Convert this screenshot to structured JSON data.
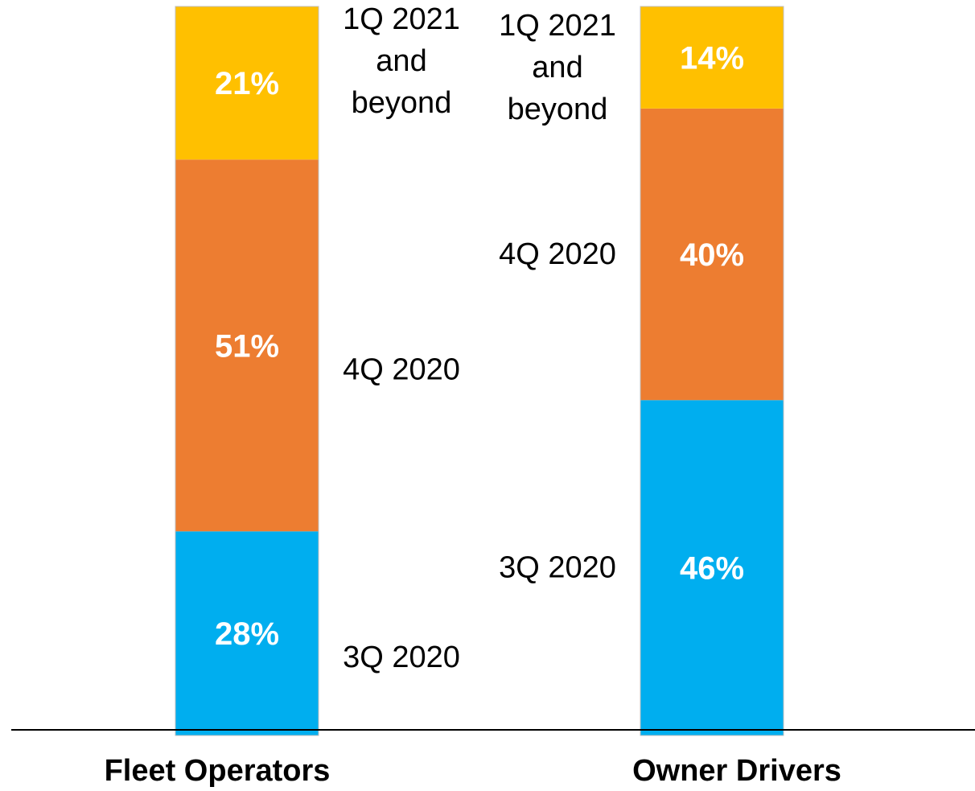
{
  "chart_data": {
    "type": "bar",
    "stacked": true,
    "percent_stacked": true,
    "categories": [
      "Fleet Operators",
      "Owner Drivers"
    ],
    "series": [
      {
        "name": "3Q 2020",
        "values": [
          28,
          46
        ],
        "color": "#00AEEF"
      },
      {
        "name": "4Q 2020",
        "values": [
          51,
          40
        ],
        "color": "#ED7D31"
      },
      {
        "name": "1Q 2021 and beyond",
        "values": [
          21,
          14
        ],
        "color": "#FFC000"
      }
    ],
    "series_label_lines": [
      [
        "3Q 2020"
      ],
      [
        "4Q 2020"
      ],
      [
        "1Q 2021",
        "and",
        "beyond"
      ]
    ],
    "data_labels": [
      [
        "28%",
        "46%"
      ],
      [
        "51%",
        "40%"
      ],
      [
        "21%",
        "14%"
      ]
    ],
    "ylim": [
      0,
      100
    ],
    "title": "",
    "xlabel": "",
    "ylabel": "",
    "grid": false,
    "legend": "inline-beside-bars"
  }
}
